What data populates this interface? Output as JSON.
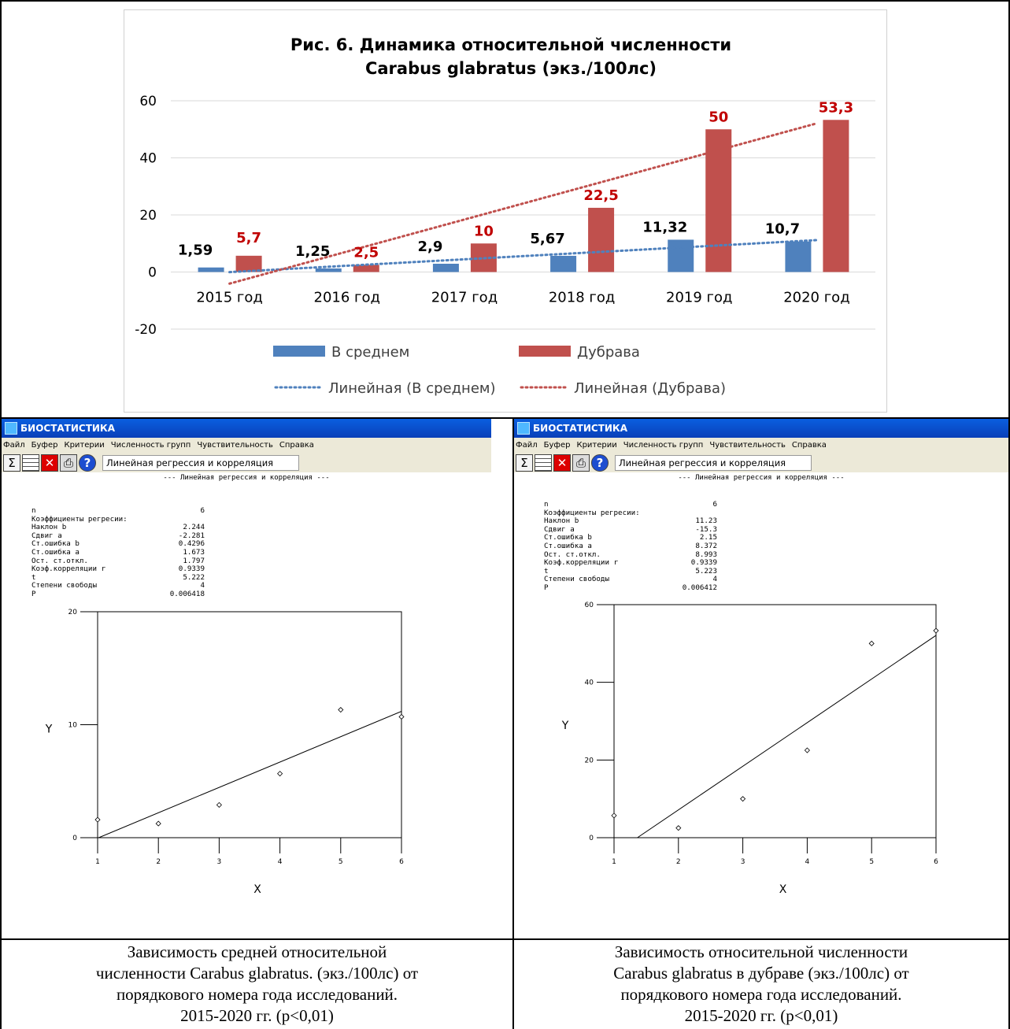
{
  "chart_data": [
    {
      "type": "bar",
      "title_lines": [
        "Рис. 6. Динамика относительной численности",
        "Carabus glabratus (экз./100лс)"
      ],
      "categories": [
        "2015 год",
        "2016 год",
        "2017 год",
        "2018 год",
        "2019 год",
        "2020 год"
      ],
      "series": [
        {
          "name": "В среднем",
          "values": [
            1.59,
            1.25,
            2.9,
            5.67,
            11.32,
            10.7
          ],
          "labels": [
            "1,59",
            "1,25",
            "2,9",
            "5,67",
            "11,32",
            "10,7"
          ],
          "color": "#4f81bd"
        },
        {
          "name": "Дубрава",
          "values": [
            5.7,
            2.5,
            10,
            22.5,
            50,
            53.3
          ],
          "labels": [
            "5,7",
            "2,5",
            "10",
            "22,5",
            "50",
            "53,3"
          ],
          "color": "#c0504d"
        }
      ],
      "trendlines": [
        {
          "name": "Линейная (В среднем)",
          "slope": 2.244,
          "intercept": -2.281,
          "color": "#4f81bd"
        },
        {
          "name": "Линейная (Дубрава)",
          "slope": 11.23,
          "intercept": -15.3,
          "color": "#c0504d"
        }
      ],
      "yticks": [
        -20,
        0,
        20,
        40,
        60
      ],
      "ylim": [
        -20,
        60
      ],
      "grid": true,
      "legend_position": "bottom"
    },
    {
      "type": "scatter",
      "x": [
        1,
        2,
        3,
        4,
        5,
        6
      ],
      "y": [
        1.59,
        1.25,
        2.9,
        5.67,
        11.32,
        10.7
      ],
      "fit": {
        "slope": 2.244,
        "intercept": -2.281
      },
      "xlabel": "X",
      "ylabel": "Y",
      "xticks": [
        "1",
        "2",
        "3",
        "4",
        "5",
        "6"
      ],
      "yticks": [
        "0",
        "10",
        "20"
      ],
      "xlim": [
        1,
        6
      ],
      "ylim": [
        0,
        20
      ]
    },
    {
      "type": "scatter",
      "x": [
        1,
        2,
        3,
        4,
        5,
        6
      ],
      "y": [
        5.7,
        2.5,
        10,
        22.5,
        50,
        53.3
      ],
      "fit": {
        "slope": 11.23,
        "intercept": -15.3
      },
      "xlabel": "X",
      "ylabel": "Y",
      "xticks": [
        "1",
        "2",
        "3",
        "4",
        "5",
        "6"
      ],
      "yticks": [
        "0",
        "20",
        "40",
        "60"
      ],
      "xlim": [
        1,
        6
      ],
      "ylim": [
        0,
        60
      ]
    }
  ],
  "app": {
    "title": "БИОСТАТИСТИКА",
    "menu": [
      "Файл",
      "Буфер",
      "Критерии",
      "Численность групп",
      "Чувствительность",
      "Справка"
    ],
    "toolbar_icons": [
      "sigma-icon",
      "table-icon",
      "delete-icon",
      "print-icon",
      "help-icon"
    ],
    "toolbar_sigma": "Σ",
    "toolbar_help": "?",
    "toolbar_field": "Линейная регрессия и корреляция",
    "subheader": "--- Линейная регрессия и корреляция ---"
  },
  "left_stats": [
    {
      "k": "n",
      "v": "6"
    },
    {
      "k": "Коэффициенты регресии:",
      "v": ""
    },
    {
      "k": "Наклон b",
      "v": "2.244"
    },
    {
      "k": "Сдвиг a",
      "v": "-2.281"
    },
    {
      "k": "Ст.ошибка b",
      "v": "0.4296"
    },
    {
      "k": "Ст.ошибка a",
      "v": "1.673"
    },
    {
      "k": "Ост. ст.откл.",
      "v": "1.797"
    },
    {
      "k": "Коэф.корреляции r",
      "v": "0.9339"
    },
    {
      "k": "t",
      "v": "5.222"
    },
    {
      "k": "Степени свободы",
      "v": "4"
    },
    {
      "k": "P",
      "v": "0.006418"
    }
  ],
  "right_stats": [
    {
      "k": "n",
      "v": "6"
    },
    {
      "k": "Коэффициенты регресии:",
      "v": ""
    },
    {
      "k": "Наклон b",
      "v": "11.23"
    },
    {
      "k": "Сдвиг a",
      "v": "-15.3"
    },
    {
      "k": "Ст.ошибка b",
      "v": "2.15"
    },
    {
      "k": "Ст.ошибка a",
      "v": "8.372"
    },
    {
      "k": "Ост. ст.откл.",
      "v": "8.993"
    },
    {
      "k": "Коэф.корреляции r",
      "v": "0.9339"
    },
    {
      "k": "t",
      "v": "5.223"
    },
    {
      "k": "Степени свободы",
      "v": "4"
    },
    {
      "k": "P",
      "v": "0.006412"
    }
  ],
  "captions": {
    "left": [
      "Зависимость средней относительной",
      "численности Carabus glabratus. (экз./100лс) от",
      "порядкового номера года исследований.",
      "2015-2020 гг. (р<0,01)"
    ],
    "right": [
      "Зависимость относительной численности",
      "Carabus glabratus в дубраве (экз./100лс) от",
      "порядкового номера года исследований.",
      "2015-2020 гг. (р<0,01)"
    ]
  }
}
